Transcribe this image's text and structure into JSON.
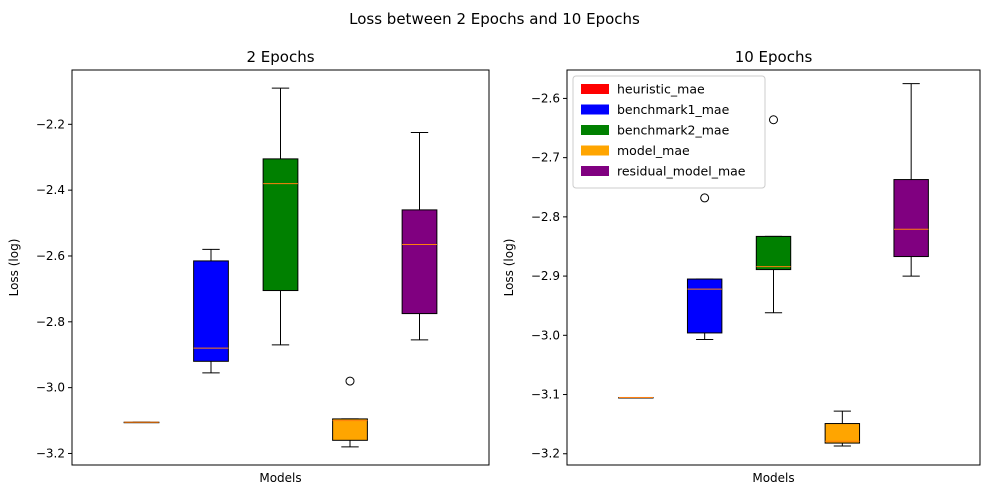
{
  "figure": {
    "title": "Loss between 2 Epochs and 10 Epochs"
  },
  "chart_data": [
    {
      "type": "boxplot",
      "title": "2 Epochs",
      "xlabel": "Models",
      "ylabel": "Loss (log)",
      "ylim": [
        -3.235,
        -2.035
      ],
      "yticks": [
        -3.2,
        -3.0,
        -2.8,
        -2.6,
        -2.4,
        -2.2
      ],
      "ytick_labels": [
        "−3.2",
        "−3.0",
        "−2.8",
        "−2.6",
        "−2.4",
        "−2.2"
      ],
      "legend": null,
      "series": [
        {
          "name": "heuristic_mae",
          "color": "#ff0000",
          "whisker_low": -3.105,
          "q1": -3.105,
          "median": -3.105,
          "q3": -3.105,
          "whisker_high": -3.105,
          "outliers": []
        },
        {
          "name": "benchmark1_mae",
          "color": "#0000ff",
          "whisker_low": -2.955,
          "q1": -2.92,
          "median": -2.88,
          "q3": -2.615,
          "whisker_high": -2.58,
          "outliers": []
        },
        {
          "name": "benchmark2_mae",
          "color": "#008000",
          "whisker_low": -2.87,
          "q1": -2.705,
          "median": -2.38,
          "q3": -2.305,
          "whisker_high": -2.09,
          "outliers": []
        },
        {
          "name": "model_mae",
          "color": "#ffa500",
          "whisker_low": -3.18,
          "q1": -3.16,
          "median": -3.1,
          "q3": -3.095,
          "whisker_high": -3.095,
          "outliers": [
            -2.98
          ]
        },
        {
          "name": "residual_model_mae",
          "color": "#800080",
          "whisker_low": -2.855,
          "q1": -2.775,
          "median": -2.565,
          "q3": -2.46,
          "whisker_high": -2.225,
          "outliers": []
        }
      ]
    },
    {
      "type": "boxplot",
      "title": "10 Epochs",
      "xlabel": "Models",
      "ylabel": "Loss (log)",
      "ylim": [
        -3.219,
        -2.552
      ],
      "yticks": [
        -3.2,
        -3.1,
        -3.0,
        -2.9,
        -2.8,
        -2.7,
        -2.6
      ],
      "ytick_labels": [
        "−3.2",
        "−3.1",
        "−3.0",
        "−2.9",
        "−2.8",
        "−2.7",
        "−2.6"
      ],
      "legend": "top-left",
      "series": [
        {
          "name": "heuristic_mae",
          "color": "#ff0000",
          "whisker_low": -3.105,
          "q1": -3.105,
          "median": -3.105,
          "q3": -3.105,
          "whisker_high": -3.105,
          "outliers": []
        },
        {
          "name": "benchmark1_mae",
          "color": "#0000ff",
          "whisker_low": -3.007,
          "q1": -2.996,
          "median": -2.922,
          "q3": -2.905,
          "whisker_high": -2.905,
          "outliers": [
            -2.768
          ]
        },
        {
          "name": "benchmark2_mae",
          "color": "#008000",
          "whisker_low": -2.962,
          "q1": -2.889,
          "median": -2.884,
          "q3": -2.833,
          "whisker_high": -2.833,
          "outliers": [
            -2.636
          ]
        },
        {
          "name": "model_mae",
          "color": "#ffa500",
          "whisker_low": -3.187,
          "q1": -3.182,
          "median": -3.179,
          "q3": -3.149,
          "whisker_high": -3.128,
          "outliers": []
        },
        {
          "name": "residual_model_mae",
          "color": "#800080",
          "whisker_low": -2.9,
          "q1": -2.867,
          "median": -2.821,
          "q3": -2.737,
          "whisker_high": -2.575,
          "outliers": []
        }
      ]
    }
  ]
}
